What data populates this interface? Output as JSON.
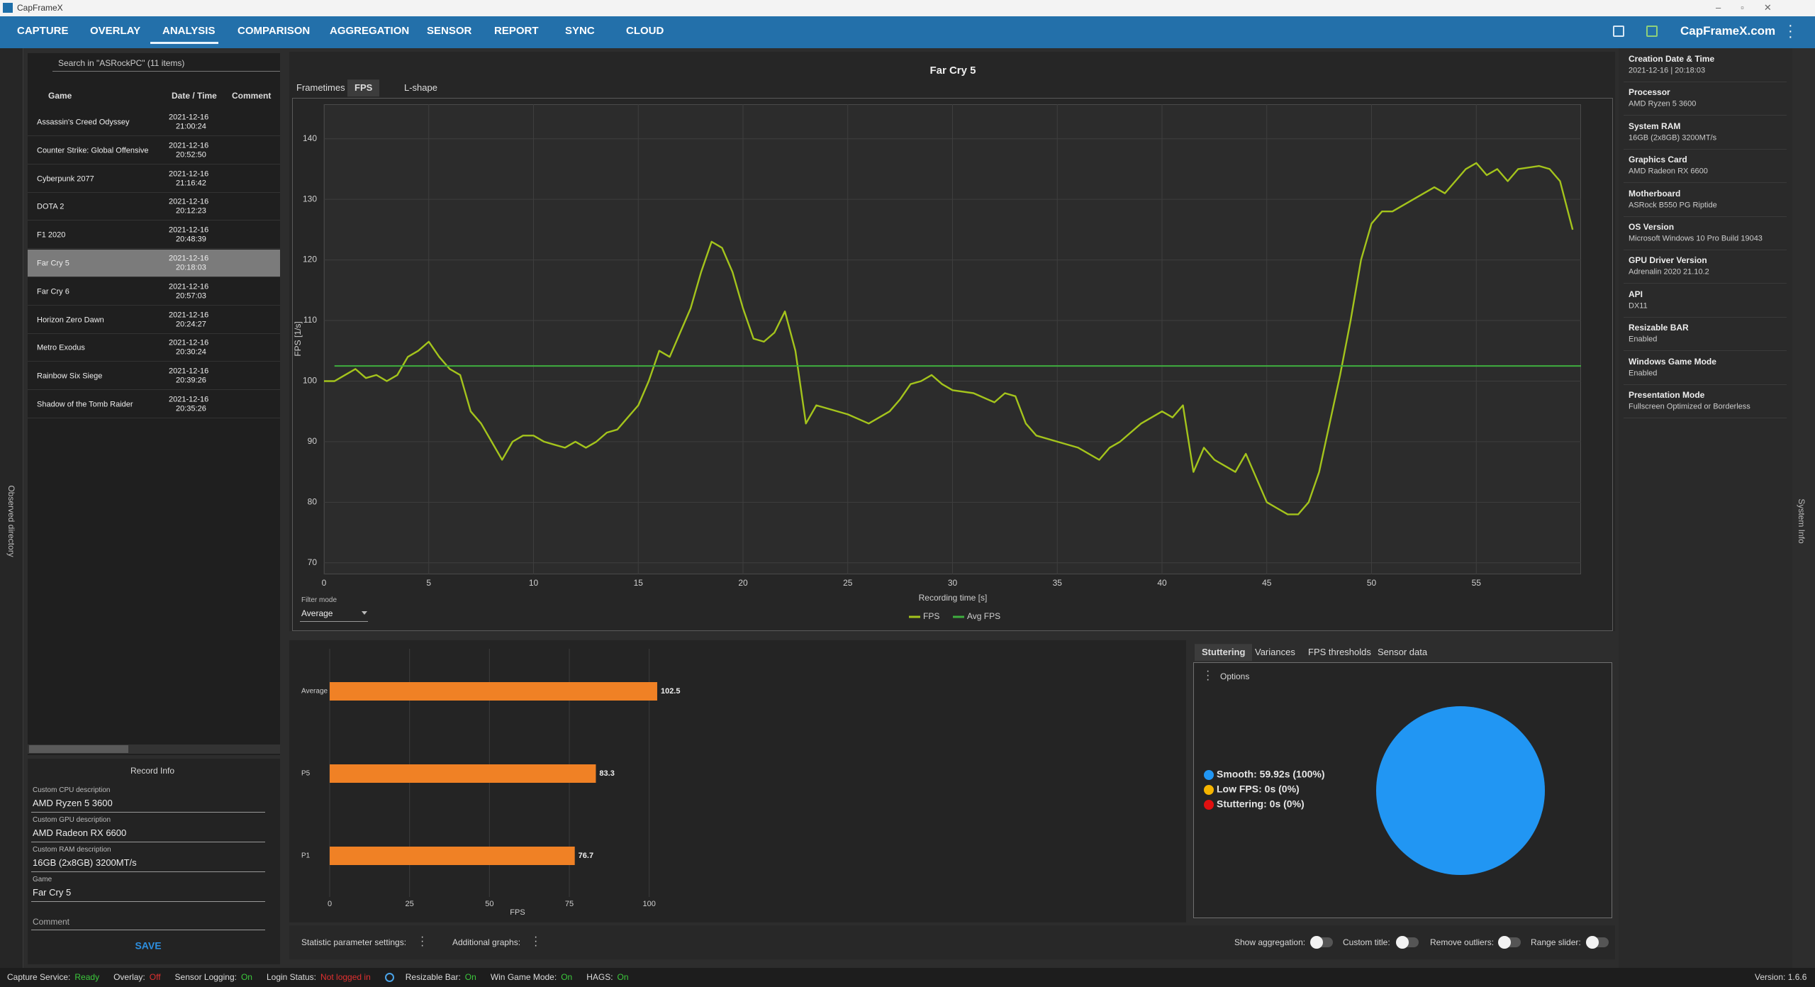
{
  "window": {
    "title": "CapFrameX"
  },
  "nav": {
    "items": [
      "CAPTURE",
      "OVERLAY",
      "ANALYSIS",
      "COMPARISON",
      "AGGREGATION",
      "SENSOR",
      "REPORT",
      "SYNC",
      "CLOUD"
    ],
    "site_link": "CapFrameX.com"
  },
  "sidebar": {
    "collapsed_label": "Observed directory",
    "search": "Search in \"ASRockPC\" (11 items)",
    "columns": [
      "Game",
      "Date / Time",
      "Comment"
    ],
    "rows": [
      {
        "game": "Assassin's Creed Odyssey",
        "date": "2021-12-16",
        "time": "21:00:24"
      },
      {
        "game": "Counter Strike: Global Offensive",
        "date": "2021-12-16",
        "time": "20:52:50"
      },
      {
        "game": "Cyberpunk 2077",
        "date": "2021-12-16",
        "time": "21:16:42"
      },
      {
        "game": "DOTA 2",
        "date": "2021-12-16",
        "time": "20:12:23"
      },
      {
        "game": "F1 2020",
        "date": "2021-12-16",
        "time": "20:48:39"
      },
      {
        "game": "Far Cry 5",
        "date": "2021-12-16",
        "time": "20:18:03"
      },
      {
        "game": "Far Cry 6",
        "date": "2021-12-16",
        "time": "20:57:03"
      },
      {
        "game": "Horizon Zero Dawn",
        "date": "2021-12-16",
        "time": "20:24:27"
      },
      {
        "game": "Metro Exodus",
        "date": "2021-12-16",
        "time": "20:30:24"
      },
      {
        "game": "Rainbow Six Siege",
        "date": "2021-12-16",
        "time": "20:39:26"
      },
      {
        "game": "Shadow of the Tomb Raider",
        "date": "2021-12-16",
        "time": "20:35:26"
      }
    ]
  },
  "record_info": {
    "title": "Record Info",
    "fields": [
      {
        "label": "Custom CPU description",
        "value": "AMD Ryzen 5 3600"
      },
      {
        "label": "Custom GPU description",
        "value": "AMD Radeon RX 6600"
      },
      {
        "label": "Custom RAM description",
        "value": "16GB (2x8GB) 3200MT/s"
      },
      {
        "label": "Game",
        "value": "Far Cry 5"
      }
    ],
    "comment_label": "Comment",
    "save": "SAVE"
  },
  "chart_tabs": [
    "Frametimes",
    "FPS",
    "L-shape"
  ],
  "fps_chart": {
    "type": "line",
    "title": "Far Cry 5",
    "x_label": "Recording time [s]",
    "y_label": "FPS [1/s]",
    "x": [
      0,
      0.5,
      1,
      1.5,
      2,
      2.5,
      3,
      3.5,
      4,
      4.5,
      5,
      5.5,
      6,
      6.5,
      7,
      7.5,
      8,
      8.5,
      9,
      9.5,
      10,
      10.5,
      11,
      11.5,
      12,
      12.5,
      13,
      13.5,
      14,
      14.5,
      15,
      15.5,
      16,
      16.5,
      17,
      17.5,
      18,
      18.5,
      19,
      19.5,
      20,
      20.5,
      21,
      21.5,
      22,
      22.5,
      23,
      23.5,
      24,
      25,
      26,
      27,
      27.5,
      28,
      28.5,
      29,
      29.5,
      30,
      31,
      32,
      32.5,
      33,
      33.5,
      34,
      35,
      36,
      37,
      37.5,
      38,
      39,
      40,
      40.5,
      41,
      41.5,
      42,
      42.5,
      43,
      43.5,
      44,
      44.5,
      45,
      45.5,
      46,
      46.5,
      47,
      47.5,
      48,
      48.5,
      49,
      49.5,
      50,
      50.5,
      51,
      52,
      53,
      53.5,
      54,
      54.5,
      55,
      55.5,
      56,
      56.5,
      57,
      58,
      58.5,
      59,
      59.6
    ],
    "series": [
      {
        "name": "FPS",
        "color": "#a4c41c",
        "values": [
          100,
          100,
          101,
          102,
          100.5,
          101,
          100,
          101,
          104,
          105,
          106.5,
          104,
          102,
          101,
          95,
          93,
          90,
          87,
          90,
          91,
          91,
          90,
          89.5,
          89,
          90,
          89,
          90,
          91.5,
          92,
          94,
          96,
          100,
          105,
          104,
          108,
          112,
          118,
          123,
          122,
          118,
          112,
          107,
          106.5,
          108,
          111.5,
          105,
          93,
          96,
          95.5,
          94.5,
          93,
          95,
          97,
          99.5,
          100,
          101,
          99.5,
          98.5,
          98,
          96.5,
          98,
          97.5,
          93,
          91,
          90,
          89,
          87,
          89,
          90,
          93,
          95,
          94,
          96,
          85,
          89,
          87,
          86,
          85,
          88,
          84,
          80,
          79,
          78,
          78,
          80,
          85,
          93,
          101,
          110,
          120,
          126,
          128,
          128,
          130,
          132,
          131,
          133,
          135,
          136,
          134,
          135,
          133,
          135,
          135.5,
          135,
          133,
          125
        ]
      }
    ],
    "average": {
      "name": "Avg FPS",
      "color": "#3fae3f",
      "value": 102.5
    },
    "xlim": [
      0,
      60
    ],
    "ylim": [
      68.1,
      145.7
    ],
    "xticks": [
      0,
      5,
      10,
      15,
      20,
      25,
      30,
      35,
      40,
      45,
      50,
      55
    ],
    "yticks": [
      70,
      80,
      90,
      100,
      110,
      120,
      130,
      140
    ],
    "grid": true
  },
  "filter": {
    "label": "Filter mode",
    "value": "Average"
  },
  "stats_chart": {
    "type": "bar",
    "orientation": "horizontal",
    "categories": [
      "Average",
      "P5",
      "P1"
    ],
    "values": [
      102.5,
      83.3,
      76.7
    ],
    "color": "#f08125",
    "x_label": "FPS",
    "xlim": [
      0,
      110
    ],
    "xticks": [
      0,
      25,
      50,
      75,
      100
    ],
    "grid": true
  },
  "analysis_tabs": [
    "Stuttering",
    "Variances",
    "FPS thresholds",
    "Sensor data"
  ],
  "options": "Options",
  "stutter_chart": {
    "type": "pie",
    "categories": [
      "Smooth",
      "Low FPS",
      "Stuttering"
    ],
    "values": [
      100,
      0,
      0
    ],
    "value_labels": [
      "Smooth:  59.92s (100%)",
      "Low FPS:  0s (0%)",
      "Stuttering:  0s (0%)"
    ],
    "colors": [
      "#2196f3",
      "#f5b400",
      "#e01010"
    ]
  },
  "toolbar": {
    "stat_settings": "Statistic parameter settings:",
    "additional_graphs": "Additional graphs:",
    "toggles": [
      "Show aggregation:",
      "Custom title:",
      "Remove outliers:",
      "Range slider:"
    ]
  },
  "system_info": {
    "collapsed_label": "System Info",
    "items": [
      {
        "label": "Creation Date & Time",
        "value": "2021-12-16  |  20:18:03"
      },
      {
        "label": "Processor",
        "value": "AMD Ryzen 5 3600"
      },
      {
        "label": "System RAM",
        "value": "16GB (2x8GB) 3200MT/s"
      },
      {
        "label": "Graphics Card",
        "value": "AMD Radeon RX 6600"
      },
      {
        "label": "Motherboard",
        "value": "ASRock B550 PG Riptide"
      },
      {
        "label": "OS Version",
        "value": "Microsoft Windows 10 Pro Build 19043"
      },
      {
        "label": "GPU Driver Version",
        "value": "Adrenalin 2020 21.10.2"
      },
      {
        "label": "API",
        "value": "DX11"
      },
      {
        "label": "Resizable BAR",
        "value": "Enabled"
      },
      {
        "label": "Windows Game Mode",
        "value": "Enabled"
      },
      {
        "label": "Presentation Mode",
        "value": "Fullscreen Optimized or Borderless"
      }
    ]
  },
  "status_bar": {
    "items": [
      {
        "label": "Capture Service:",
        "value": "Ready",
        "color": "#3cc83c"
      },
      {
        "label": "Overlay:",
        "value": "Off",
        "color": "#e03030"
      },
      {
        "label": "Sensor Logging:",
        "value": "On",
        "color": "#3cc83c"
      },
      {
        "label": "Login Status:",
        "value": "Not logged in",
        "color": "#e03030"
      },
      {
        "label": "Resizable Bar:",
        "value": "On",
        "color": "#3cc83c"
      },
      {
        "label": "Win Game Mode:",
        "value": "On",
        "color": "#3cc83c"
      },
      {
        "label": "HAGS:",
        "value": "On",
        "color": "#3cc83c"
      }
    ],
    "version": "Version: 1.6.6"
  }
}
